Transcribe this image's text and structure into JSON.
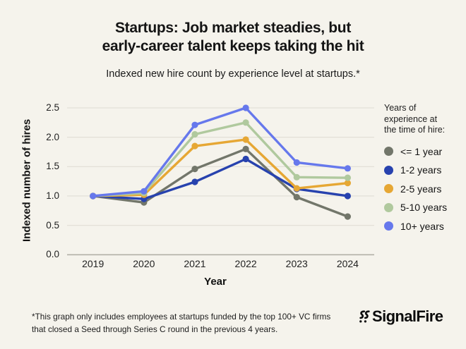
{
  "header": {
    "title": "Startups: Job market steadies, but\nearly-career talent keeps taking the hit",
    "subtitle": "Indexed new hire count by experience level at startups.*"
  },
  "colors": {
    "background": "#f5f3ec",
    "gridline": "#e0ded5",
    "axis": "#b3b0a7",
    "text": "#141414"
  },
  "chart_data": {
    "type": "line",
    "title": "Indexed new hire count by experience level at startups.*",
    "xlabel": "Year",
    "ylabel": "Indexed number of hires",
    "x": [
      "2019",
      "2020",
      "2021",
      "2022",
      "2023",
      "2024"
    ],
    "ylim": [
      0,
      2.5
    ],
    "yticks": [
      0,
      0.5,
      1,
      1.5,
      2,
      2.5
    ],
    "ytick_labels": [
      "0.0",
      "0.5",
      "1.0",
      "1.5",
      "2.0",
      "2.5"
    ],
    "grid": true,
    "legend_position": "right",
    "legend_title": "Years of\nexperience at\nthe time of hire:",
    "series": [
      {
        "name": "<= 1 year",
        "color": "#72766a",
        "values": [
          1.0,
          0.89,
          1.46,
          1.8,
          0.98,
          0.65
        ]
      },
      {
        "name": "1-2 years",
        "color": "#2742ae",
        "values": [
          1.0,
          0.95,
          1.24,
          1.63,
          1.12,
          1.0
        ]
      },
      {
        "name": "2-5 years",
        "color": "#e6a734",
        "values": [
          1.0,
          1.02,
          1.85,
          1.96,
          1.13,
          1.22
        ]
      },
      {
        "name": "5-10 years",
        "color": "#b0c99e",
        "values": [
          1.0,
          1.05,
          2.05,
          2.25,
          1.32,
          1.31
        ]
      },
      {
        "name": "10+ years",
        "color": "#6678ec",
        "values": [
          1.0,
          1.08,
          2.21,
          2.5,
          1.57,
          1.47
        ]
      }
    ]
  },
  "footer": {
    "note": "*This graph only includes employees at startups funded by the top 100+ VC firms\nthat closed a Seed through Series C round in the previous 4 years.",
    "brand": "SignalFire"
  }
}
